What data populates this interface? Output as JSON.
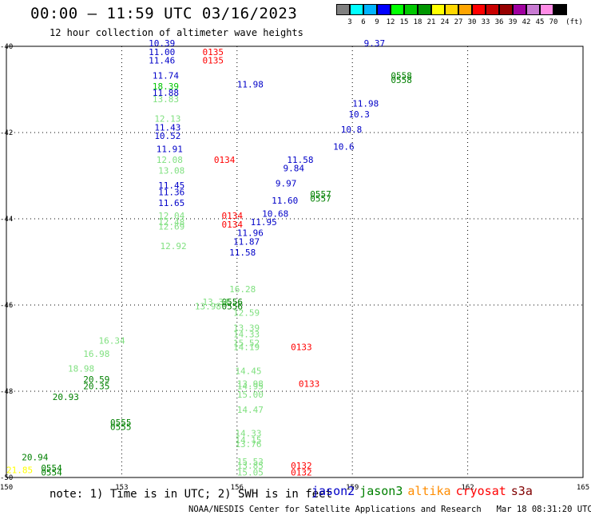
{
  "header": {
    "title": "00:00 – 11:59 UTC 03/16/2023",
    "subtitle": "12 hour collection of altimeter wave heights"
  },
  "colorbar": {
    "unit": "(ft)",
    "colors": [
      "#808080",
      "#00ffff",
      "#00b4ff",
      "#0000ff",
      "#00ff00",
      "#00c800",
      "#009600",
      "#ffff00",
      "#ffd700",
      "#ffa500",
      "#ff0000",
      "#c80000",
      "#960000",
      "#a000a0",
      "#c87ad2",
      "#ff8ce6",
      "#000000"
    ],
    "labels": [
      "3",
      "6",
      "9",
      "12",
      "15",
      "18",
      "21",
      "24",
      "27",
      "30",
      "33",
      "36",
      "39",
      "42",
      "45",
      "70"
    ]
  },
  "note": "note: 1) Time is in UTC; 2) SWH is in feet",
  "satellites": [
    {
      "name": "jason2",
      "color": "#0000c8"
    },
    {
      "name": "jason3",
      "color": "#008000"
    },
    {
      "name": "altika",
      "color": "#ff8c00"
    },
    {
      "name": "cryosat",
      "color": "#ff0000"
    },
    {
      "name": "s3a",
      "color": "#800000"
    }
  ],
  "footer": "NOAA/NESDIS Center for Satellite Applications and Research   Mar 18 08:31:20 UTC 2023",
  "chart_data": {
    "type": "scatter",
    "x_ticks": [
      "150",
      "153",
      "156",
      "159",
      "162",
      "165"
    ],
    "y_ticks": [
      "-40",
      "-42",
      "-44",
      "-46",
      "-48",
      "-50"
    ],
    "xlim": [
      150,
      165
    ],
    "ylim": [
      -50,
      -40
    ],
    "grid": "dotted",
    "labels": [
      {
        "x": 153.7,
        "y": -40.0,
        "text": "10.39",
        "color": "#0000c8"
      },
      {
        "x": 153.7,
        "y": -40.2,
        "text": "11.00",
        "color": "#0000c8"
      },
      {
        "x": 153.7,
        "y": -40.4,
        "text": "11.46",
        "color": "#0000c8"
      },
      {
        "x": 155.1,
        "y": -40.2,
        "text": "0135",
        "color": "#ff0000"
      },
      {
        "x": 155.1,
        "y": -40.4,
        "text": "0135",
        "color": "#ff0000"
      },
      {
        "x": 153.8,
        "y": -40.75,
        "text": "11.74",
        "color": "#0000c8"
      },
      {
        "x": 153.8,
        "y": -41.0,
        "text": "18.39",
        "color": "#00c800"
      },
      {
        "x": 153.8,
        "y": -41.15,
        "text": "11.88",
        "color": "#0000c8"
      },
      {
        "x": 153.8,
        "y": -41.3,
        "text": "13.83",
        "color": "#80e080"
      },
      {
        "x": 153.85,
        "y": -41.75,
        "text": "12.13",
        "color": "#80e080"
      },
      {
        "x": 153.85,
        "y": -41.95,
        "text": "11.43",
        "color": "#0000c8"
      },
      {
        "x": 153.85,
        "y": -42.15,
        "text": "10.52",
        "color": "#0000c8"
      },
      {
        "x": 153.9,
        "y": -42.45,
        "text": "11.91",
        "color": "#0000c8"
      },
      {
        "x": 153.9,
        "y": -42.7,
        "text": "12.08",
        "color": "#80e080"
      },
      {
        "x": 155.4,
        "y": -42.7,
        "text": "0134",
        "color": "#ff0000"
      },
      {
        "x": 153.95,
        "y": -42.95,
        "text": "13.08",
        "color": "#80e080"
      },
      {
        "x": 153.95,
        "y": -43.3,
        "text": "11.45",
        "color": "#0000c8"
      },
      {
        "x": 153.95,
        "y": -43.45,
        "text": "11.36",
        "color": "#0000c8"
      },
      {
        "x": 153.95,
        "y": -43.7,
        "text": "11.65",
        "color": "#0000c8"
      },
      {
        "x": 153.95,
        "y": -44.0,
        "text": "12.04",
        "color": "#80e080"
      },
      {
        "x": 153.95,
        "y": -44.15,
        "text": "12.48",
        "color": "#80e080"
      },
      {
        "x": 153.95,
        "y": -44.25,
        "text": "12.69",
        "color": "#80e080"
      },
      {
        "x": 155.6,
        "y": -44.0,
        "text": "0134",
        "color": "#ff0000"
      },
      {
        "x": 155.6,
        "y": -44.2,
        "text": "0134",
        "color": "#ff0000"
      },
      {
        "x": 156.0,
        "y": -44.4,
        "text": "11.96",
        "color": "#0000c8"
      },
      {
        "x": 155.9,
        "y": -44.6,
        "text": "11.87",
        "color": "#0000c8"
      },
      {
        "x": 154.0,
        "y": -44.7,
        "text": "12.92",
        "color": "#80e080"
      },
      {
        "x": 155.8,
        "y": -44.85,
        "text": "11.58",
        "color": "#0000c8"
      },
      {
        "x": 156.0,
        "y": -40.95,
        "text": "11.98",
        "color": "#0000c8"
      },
      {
        "x": 157.3,
        "y": -42.7,
        "text": "11.58",
        "color": "#0000c8"
      },
      {
        "x": 157.2,
        "y": -42.9,
        "text": "9.84",
        "color": "#0000c8"
      },
      {
        "x": 157.0,
        "y": -43.25,
        "text": "9.97",
        "color": "#0000c8"
      },
      {
        "x": 156.9,
        "y": -43.65,
        "text": "11.60",
        "color": "#0000c8"
      },
      {
        "x": 156.65,
        "y": -43.95,
        "text": "10.68",
        "color": "#0000c8"
      },
      {
        "x": 156.35,
        "y": -44.15,
        "text": "11.95",
        "color": "#0000c8"
      },
      {
        "x": 159.3,
        "y": -40.0,
        "text": "9.37",
        "color": "#0000c8"
      },
      {
        "x": 159.0,
        "y": -41.4,
        "text": "11.98",
        "color": "#0000c8"
      },
      {
        "x": 158.9,
        "y": -41.65,
        "text": "10.3",
        "color": "#0000c8"
      },
      {
        "x": 158.7,
        "y": -42.0,
        "text": "10.8",
        "color": "#0000c8"
      },
      {
        "x": 158.5,
        "y": -42.4,
        "text": "10.6",
        "color": "#0000c8"
      },
      {
        "x": 160.0,
        "y": -40.75,
        "text": "0558",
        "color": "#008000"
      },
      {
        "x": 160.0,
        "y": -40.85,
        "text": "0558",
        "color": "#008000"
      },
      {
        "x": 157.9,
        "y": -43.5,
        "text": "0557",
        "color": "#008000"
      },
      {
        "x": 157.9,
        "y": -43.6,
        "text": "0557",
        "color": "#008000"
      },
      {
        "x": 155.6,
        "y": -46.0,
        "text": "0556",
        "color": "#008000"
      },
      {
        "x": 155.6,
        "y": -46.1,
        "text": "0556",
        "color": "#008000"
      },
      {
        "x": 152.7,
        "y": -48.8,
        "text": "0555",
        "color": "#008000"
      },
      {
        "x": 152.7,
        "y": -48.9,
        "text": "0555",
        "color": "#008000"
      },
      {
        "x": 150.9,
        "y": -49.85,
        "text": "0554",
        "color": "#008000"
      },
      {
        "x": 150.9,
        "y": -49.95,
        "text": "0554",
        "color": "#008000"
      },
      {
        "x": 155.8,
        "y": -45.7,
        "text": "16.28",
        "color": "#80e080"
      },
      {
        "x": 155.9,
        "y": -46.25,
        "text": "12.59",
        "color": "#80e080"
      },
      {
        "x": 155.9,
        "y": -46.6,
        "text": "13.39",
        "color": "#80e080"
      },
      {
        "x": 155.9,
        "y": -46.75,
        "text": "14.33",
        "color": "#80e080"
      },
      {
        "x": 155.9,
        "y": -46.95,
        "text": "15.52",
        "color": "#80e080"
      },
      {
        "x": 155.9,
        "y": -47.05,
        "text": "14.19",
        "color": "#80e080"
      },
      {
        "x": 157.4,
        "y": -47.05,
        "text": "0133",
        "color": "#ff0000"
      },
      {
        "x": 155.95,
        "y": -47.6,
        "text": "14.45",
        "color": "#80e080"
      },
      {
        "x": 156.0,
        "y": -47.9,
        "text": "13.98",
        "color": "#80e080"
      },
      {
        "x": 156.0,
        "y": -47.95,
        "text": "14.95",
        "color": "#80e080"
      },
      {
        "x": 157.6,
        "y": -47.9,
        "text": "0133",
        "color": "#ff0000"
      },
      {
        "x": 156.0,
        "y": -48.15,
        "text": "15.00",
        "color": "#80e080"
      },
      {
        "x": 156.0,
        "y": -48.5,
        "text": "14.47",
        "color": "#80e080"
      },
      {
        "x": 155.95,
        "y": -49.05,
        "text": "14.33",
        "color": "#80e080"
      },
      {
        "x": 155.95,
        "y": -49.2,
        "text": "14.15",
        "color": "#80e080"
      },
      {
        "x": 155.95,
        "y": -49.3,
        "text": "13.76",
        "color": "#80e080"
      },
      {
        "x": 156.0,
        "y": -49.7,
        "text": "15.53",
        "color": "#80e080"
      },
      {
        "x": 156.0,
        "y": -49.8,
        "text": "13.85",
        "color": "#80e080"
      },
      {
        "x": 156.0,
        "y": -49.95,
        "text": "15.05",
        "color": "#80e080"
      },
      {
        "x": 157.4,
        "y": -49.8,
        "text": "0132",
        "color": "#ff0000"
      },
      {
        "x": 157.4,
        "y": -49.95,
        "text": "0132",
        "color": "#ff0000"
      },
      {
        "x": 155.1,
        "y": -46.0,
        "text": "13.34",
        "color": "#80e080"
      },
      {
        "x": 154.9,
        "y": -46.1,
        "text": "13.98",
        "color": "#80e080"
      },
      {
        "x": 152.4,
        "y": -46.9,
        "text": "16.34",
        "color": "#80e080"
      },
      {
        "x": 152.0,
        "y": -47.2,
        "text": "16.98",
        "color": "#80e080"
      },
      {
        "x": 151.6,
        "y": -47.55,
        "text": "18.98",
        "color": "#80e080"
      },
      {
        "x": 152.0,
        "y": -47.8,
        "text": "20.59",
        "color": "#008000"
      },
      {
        "x": 152.0,
        "y": -47.95,
        "text": "20.35",
        "color": "#008000"
      },
      {
        "x": 151.2,
        "y": -48.2,
        "text": "20.93",
        "color": "#008000"
      },
      {
        "x": 150.4,
        "y": -49.6,
        "text": "20.94",
        "color": "#008000"
      },
      {
        "x": 150.0,
        "y": -49.9,
        "text": "21.85",
        "color": "#ffff00"
      }
    ]
  }
}
